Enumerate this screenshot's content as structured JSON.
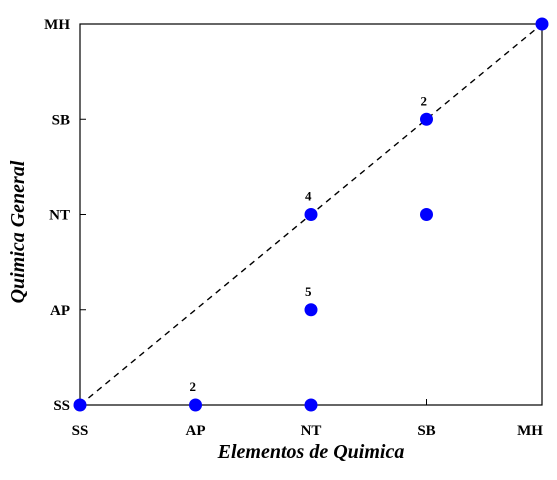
{
  "chart_data": {
    "type": "scatter",
    "title": "",
    "xlabel": "Elementos de Quimica",
    "ylabel": "Quimica General",
    "categories": [
      "SS",
      "AP",
      "NT",
      "SB",
      "MH"
    ],
    "points": [
      {
        "x": "SS",
        "y": "SS",
        "count": ""
      },
      {
        "x": "AP",
        "y": "SS",
        "count": "2"
      },
      {
        "x": "NT",
        "y": "SS",
        "count": ""
      },
      {
        "x": "NT",
        "y": "AP",
        "count": "5"
      },
      {
        "x": "NT",
        "y": "NT",
        "count": "4"
      },
      {
        "x": "SB",
        "y": "NT",
        "count": ""
      },
      {
        "x": "SB",
        "y": "SB",
        "count": "2"
      },
      {
        "x": "MH",
        "y": "MH",
        "count": ""
      }
    ],
    "reference_line": "diagonal",
    "grid": false,
    "marker_color": "#0000ff"
  }
}
